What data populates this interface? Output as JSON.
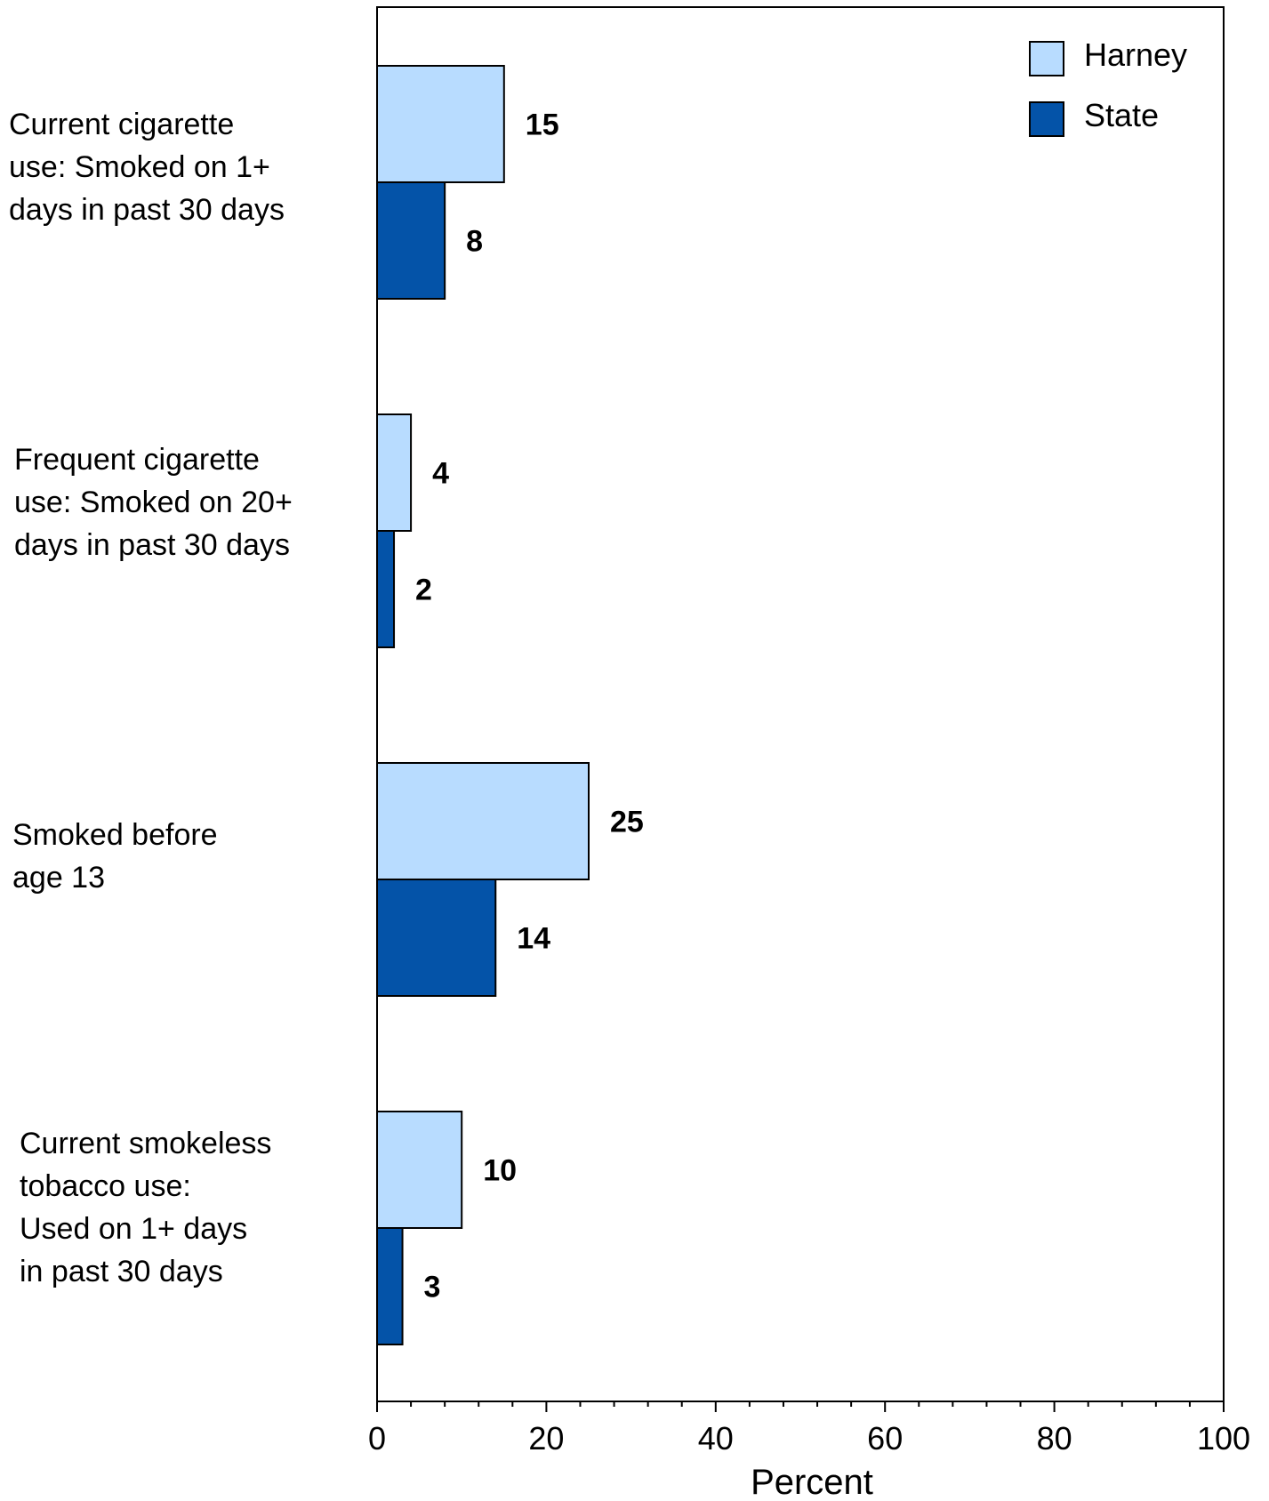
{
  "chart_data": {
    "type": "bar",
    "orientation": "horizontal",
    "categories": [
      [
        "Current cigarette",
        "use: Smoked on 1+",
        "days in past 30 days"
      ],
      [
        "Frequent cigarette",
        "use: Smoked on 20+",
        "days in past 30 days"
      ],
      [
        "Smoked before",
        "age 13"
      ],
      [
        "Current smokeless",
        "tobacco use:",
        "Used on 1+ days",
        "in past 30 days"
      ]
    ],
    "series": [
      {
        "name": "Harney",
        "values": [
          15,
          4,
          25,
          10
        ],
        "color": "#b8dcff"
      },
      {
        "name": "State",
        "values": [
          8,
          2,
          14,
          3
        ],
        "color": "#0453a8"
      }
    ],
    "xlabel": "Percent",
    "xlim": [
      0,
      100
    ],
    "xticks": [
      0,
      20,
      40,
      60,
      80,
      100
    ],
    "grid": false,
    "legend_position": "top-right",
    "data_labels": true
  }
}
